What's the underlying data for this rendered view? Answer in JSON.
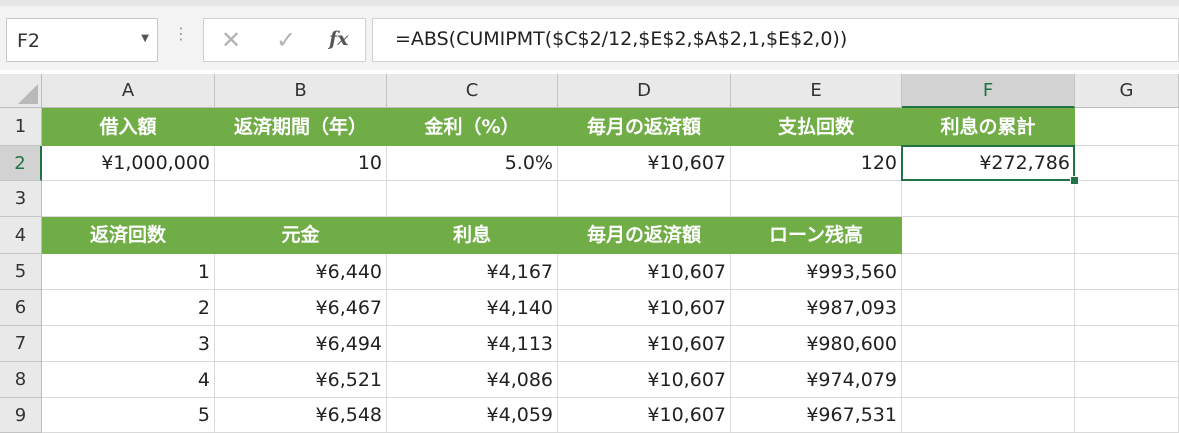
{
  "name_box": {
    "value": "F2"
  },
  "formula_bar": {
    "cancel_icon": "x-icon",
    "enter_icon": "check-icon",
    "fx_label": "fx",
    "formula": "=ABS(CUMIPMT($C$2/12,$E$2,$A$2,1,$E$2,0))"
  },
  "columns": [
    "A",
    "B",
    "C",
    "D",
    "E",
    "F",
    "G"
  ],
  "rows": [
    "1",
    "2",
    "3",
    "4",
    "5",
    "6",
    "7",
    "8",
    "9"
  ],
  "selected_cell": "F2",
  "sheet": {
    "header1": [
      "借入額",
      "返済期間（年）",
      "金利（%）",
      "毎月の返済額",
      "支払回数",
      "利息の累計"
    ],
    "row2": [
      "¥1,000,000",
      "10",
      "5.0%",
      "¥10,607",
      "120",
      "¥272,786"
    ],
    "header2": [
      "返済回数",
      "元金",
      "利息",
      "毎月の返済額",
      "ローン残高"
    ],
    "schedule": [
      [
        "1",
        "¥6,440",
        "¥4,167",
        "¥10,607",
        "¥993,560"
      ],
      [
        "2",
        "¥6,467",
        "¥4,140",
        "¥10,607",
        "¥987,093"
      ],
      [
        "3",
        "¥6,494",
        "¥4,113",
        "¥10,607",
        "¥980,600"
      ],
      [
        "4",
        "¥6,521",
        "¥4,086",
        "¥10,607",
        "¥974,079"
      ],
      [
        "5",
        "¥6,548",
        "¥4,059",
        "¥10,607",
        "¥967,531"
      ]
    ]
  },
  "colors": {
    "header_fill": "#70ad47",
    "selection": "#217346"
  }
}
